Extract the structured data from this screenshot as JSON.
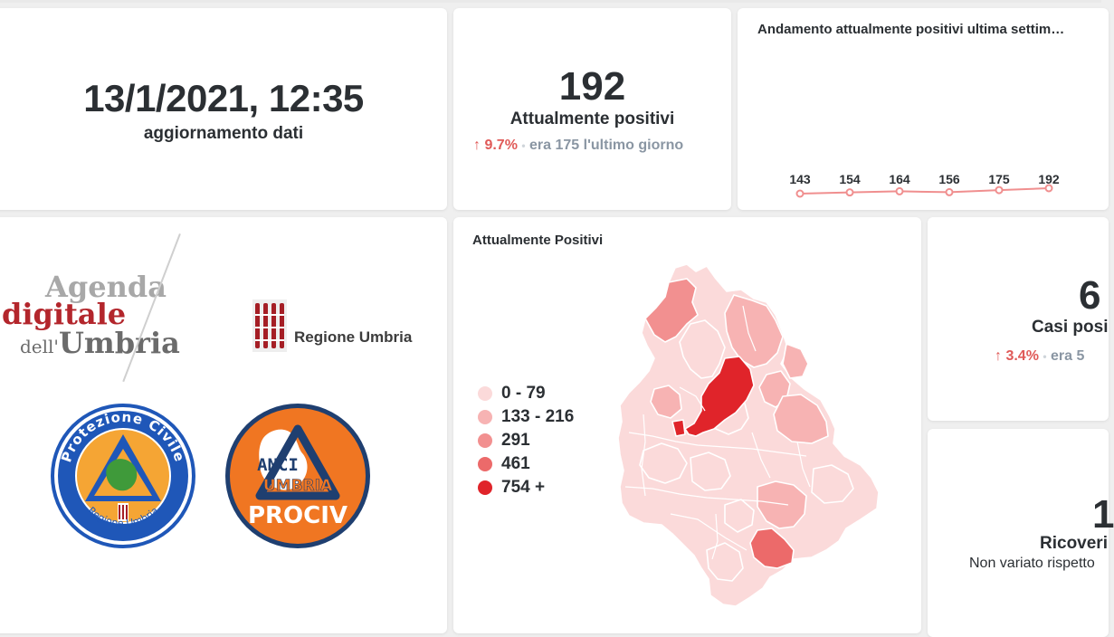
{
  "update": {
    "datetime": "13/1/2021, 12:35",
    "label": "aggiornamento dati"
  },
  "positivi": {
    "value": "192",
    "label": "Attualmente positivi",
    "arrow": "↑",
    "pct": "9.7%",
    "dot": "•",
    "prev": "era 175",
    "period": "l'ultimo giorno"
  },
  "trend_card": {
    "title": "Andamento attualmente positivi ultima settim…",
    "values": [
      143,
      154,
      164,
      156,
      175,
      192
    ],
    "color": "#f08f8f"
  },
  "logos": {
    "agenda_line1": "Agenda",
    "agenda_line2": "digitale",
    "agenda_line3_small": "dell'",
    "agenda_line3_big": "Umbria",
    "regione": "Regione Umbria",
    "pc_ring": "Protezione Civile",
    "pc_bottom": "Regione Umbria",
    "anci_1": "ANCI",
    "anci_2": "UMBRIA",
    "anci_3": "PROCIV"
  },
  "map_card": {
    "title": "Attualmente Positivi",
    "legend": [
      {
        "label": "0 - 79",
        "color": "#fbdada"
      },
      {
        "label": "133 - 216",
        "color": "#f7b3b3"
      },
      {
        "label": "291",
        "color": "#f29090"
      },
      {
        "label": "461",
        "color": "#ec6a6a"
      },
      {
        "label": "754 +",
        "color": "#e0242a"
      }
    ]
  },
  "casi": {
    "value": "6",
    "label": "Casi posi",
    "arrow": "↑",
    "pct": "3.4%",
    "dot": "•",
    "prev": "era 5"
  },
  "ricoveri": {
    "value": "1",
    "label": "Ricoveri",
    "sub": "Non variato rispetto"
  }
}
